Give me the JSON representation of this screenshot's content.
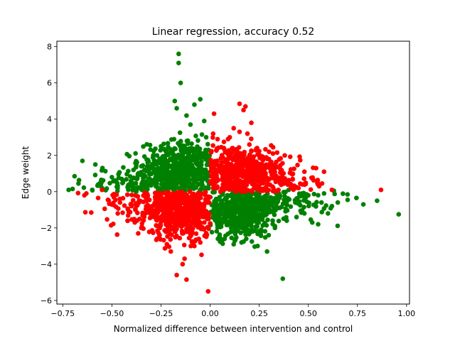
{
  "chart_data": {
    "type": "scatter",
    "title": "Linear regression, accuracy 0.52",
    "xlabel": "Normalized difference between intervention and control",
    "ylabel": "Edge weight",
    "xlim": [
      -0.78,
      1.015
    ],
    "ylim": [
      -6.2,
      8.3
    ],
    "xticks": [
      -0.75,
      -0.5,
      -0.25,
      0.0,
      0.25,
      0.5,
      0.75,
      1.0
    ],
    "xtick_labels": [
      "−0.75",
      "−0.50",
      "−0.25",
      "0.00",
      "0.25",
      "0.50",
      "0.75",
      "1.00"
    ],
    "yticks": [
      -6,
      -4,
      -2,
      0,
      2,
      4,
      6,
      8
    ],
    "ytick_labels": [
      "−6",
      "−4",
      "−2",
      "0",
      "2",
      "4",
      "6",
      "8"
    ],
    "grid": false,
    "legend": "none",
    "colors": {
      "green_series": "#008000",
      "red_series": "#ff0000"
    },
    "series": [
      {
        "color": "#008000",
        "clusters": [
          {
            "center": [
              -0.14,
              1.1
            ],
            "spread": [
              0.11,
              0.85
            ],
            "region": "x<0,y>0",
            "n": 520
          },
          {
            "center": [
              0.14,
              -0.9
            ],
            "spread": [
              0.11,
              0.8
            ],
            "region": "x>0,y<0",
            "n": 520
          },
          {
            "center": [
              -0.4,
              0.3
            ],
            "spread": [
              0.12,
              0.55
            ],
            "region": "x<0,y>0",
            "n": 90
          },
          {
            "center": [
              0.4,
              -0.3
            ],
            "spread": [
              0.12,
              0.55
            ],
            "region": "x>0,y<0",
            "n": 90
          }
        ],
        "points": [
          [
            -0.16,
            7.6
          ],
          [
            -0.16,
            7.1
          ],
          [
            -0.15,
            6.0
          ],
          [
            -0.18,
            5.0
          ],
          [
            -0.17,
            4.6
          ],
          [
            -0.08,
            4.8
          ],
          [
            -0.05,
            5.1
          ],
          [
            -0.12,
            4.2
          ],
          [
            -0.03,
            3.9
          ],
          [
            -0.1,
            3.7
          ],
          [
            -0.02,
            3.0
          ],
          [
            -0.65,
            1.7
          ],
          [
            -0.25,
            2.5
          ],
          [
            -0.27,
            2.0
          ],
          [
            -0.35,
            1.4
          ],
          [
            -0.39,
            1.2
          ],
          [
            -0.5,
            0.8
          ],
          [
            -0.45,
            0.7
          ],
          [
            -0.69,
            0.85
          ],
          [
            -0.67,
            0.45
          ],
          [
            -0.55,
            0.2
          ],
          [
            -0.72,
            0.1
          ],
          [
            -0.7,
            0.15
          ],
          [
            -0.6,
            0.1
          ],
          [
            -0.3,
            0.35
          ],
          [
            -0.42,
            0.25
          ],
          [
            -0.23,
            1.6
          ],
          [
            -0.2,
            0.6
          ],
          [
            0.04,
            -2.6
          ],
          [
            0.12,
            -2.9
          ],
          [
            0.16,
            -2.8
          ],
          [
            0.2,
            -2.3
          ],
          [
            0.26,
            -2.1
          ],
          [
            0.33,
            -1.9
          ],
          [
            0.37,
            -4.8
          ],
          [
            0.33,
            -2.0
          ],
          [
            0.48,
            -1.2
          ],
          [
            0.52,
            -1.7
          ],
          [
            0.55,
            -1.8
          ],
          [
            0.6,
            -1.2
          ],
          [
            0.62,
            -0.8
          ],
          [
            0.65,
            -0.6
          ],
          [
            0.7,
            -0.45
          ],
          [
            0.78,
            -0.7
          ],
          [
            0.85,
            -0.5
          ],
          [
            0.96,
            -1.25
          ],
          [
            0.44,
            -1.4
          ],
          [
            0.39,
            -1.6
          ],
          [
            0.5,
            -0.2
          ],
          [
            0.58,
            -0.1
          ],
          [
            0.63,
            0.05
          ],
          [
            0.4,
            0.1
          ],
          [
            0.3,
            -0.5
          ],
          [
            0.22,
            -1.5
          ]
        ]
      },
      {
        "color": "#ff0000",
        "clusters": [
          {
            "center": [
              0.14,
              1.0
            ],
            "spread": [
              0.11,
              0.8
            ],
            "region": "x>0,y>0",
            "n": 520
          },
          {
            "center": [
              -0.14,
              -1.0
            ],
            "spread": [
              0.11,
              0.8
            ],
            "region": "x<0,y<0",
            "n": 520
          },
          {
            "center": [
              0.38,
              0.5
            ],
            "spread": [
              0.11,
              0.5
            ],
            "region": "x>0,y>0",
            "n": 70
          },
          {
            "center": [
              -0.38,
              -0.6
            ],
            "spread": [
              0.11,
              0.55
            ],
            "region": "x<0,y<0",
            "n": 70
          }
        ],
        "points": [
          [
            0.15,
            4.85
          ],
          [
            0.18,
            4.7
          ],
          [
            0.17,
            4.5
          ],
          [
            0.12,
            3.5
          ],
          [
            0.02,
            4.3
          ],
          [
            0.21,
            3.8
          ],
          [
            0.19,
            3.2
          ],
          [
            0.1,
            3.0
          ],
          [
            0.2,
            2.6
          ],
          [
            0.3,
            2.2
          ],
          [
            0.32,
            2.1
          ],
          [
            0.38,
            2.0
          ],
          [
            0.48,
            1.1
          ],
          [
            0.58,
            1.1
          ],
          [
            0.57,
            0.45
          ],
          [
            0.42,
            0.7
          ],
          [
            0.62,
            0.1
          ],
          [
            0.87,
            0.1
          ],
          [
            0.45,
            0.2
          ],
          [
            0.3,
            1.5
          ],
          [
            -0.01,
            -5.5
          ],
          [
            -0.17,
            -4.6
          ],
          [
            -0.14,
            -4.0
          ],
          [
            -0.13,
            -3.7
          ],
          [
            -0.12,
            -4.85
          ],
          [
            -0.2,
            -3.3
          ],
          [
            -0.22,
            -2.9
          ],
          [
            -0.27,
            -2.6
          ],
          [
            -0.35,
            -2.0
          ],
          [
            -0.42,
            -1.6
          ],
          [
            -0.47,
            -1.2
          ],
          [
            -0.52,
            -0.45
          ],
          [
            -0.57,
            -0.35
          ],
          [
            -0.63,
            -0.1
          ],
          [
            -0.64,
            -0.2
          ],
          [
            -0.4,
            -0.8
          ],
          [
            -0.3,
            -1.3
          ],
          [
            -0.55,
            0.1
          ],
          [
            -0.05,
            -2.8
          ],
          [
            -0.08,
            -3.0
          ]
        ]
      }
    ]
  }
}
